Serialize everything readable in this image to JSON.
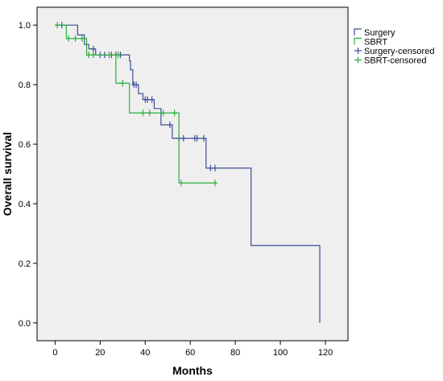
{
  "chart_data": {
    "type": "line",
    "subtype": "kaplan-meier step survival curve",
    "title": "",
    "xlabel": "Months",
    "ylabel": "Overall survival",
    "xlim": [
      -8,
      130
    ],
    "ylim": [
      -0.06,
      1.06
    ],
    "x_ticks": [
      0,
      20,
      40,
      60,
      80,
      100,
      120
    ],
    "y_ticks": [
      0.0,
      0.2,
      0.4,
      0.6,
      0.8,
      1.0
    ],
    "x_tick_labels": [
      "0",
      "20",
      "40",
      "60",
      "80",
      "100",
      "120"
    ],
    "y_tick_labels": [
      "0.0",
      "0.2",
      "0.4",
      "0.6",
      "0.8",
      "1.0"
    ],
    "grid": false,
    "background": "#efefef",
    "legend": {
      "placement": "right, outside plot",
      "entries": [
        {
          "label": "Surgery",
          "marker": "step",
          "color": "#3d4f9a"
        },
        {
          "label": "SBRT",
          "marker": "step",
          "color": "#29b03b"
        },
        {
          "label": "Surgery-censored",
          "marker": "cross",
          "color": "#3d4f9a"
        },
        {
          "label": "SBRT-censored",
          "marker": "cross",
          "color": "#29b03b"
        }
      ]
    },
    "series": [
      {
        "name": "Surgery",
        "color": "#3d4f9a",
        "steps": [
          [
            0,
            1.0
          ],
          [
            10,
            0.967
          ],
          [
            13,
            0.935
          ],
          [
            15,
            0.92
          ],
          [
            18,
            0.9
          ],
          [
            33,
            0.88
          ],
          [
            33.5,
            0.85
          ],
          [
            34.5,
            0.8
          ],
          [
            37,
            0.77
          ],
          [
            39,
            0.75
          ],
          [
            44,
            0.72
          ],
          [
            47,
            0.665
          ],
          [
            52,
            0.62
          ],
          [
            67,
            0.52
          ],
          [
            87,
            0.26
          ],
          [
            117.5,
            0.0
          ]
        ],
        "end_x": 117.5,
        "censored": [
          [
            3,
            1.0
          ],
          [
            17,
            0.92
          ],
          [
            20,
            0.9
          ],
          [
            22,
            0.9
          ],
          [
            25,
            0.9
          ],
          [
            27,
            0.9
          ],
          [
            29,
            0.9
          ],
          [
            35,
            0.8
          ],
          [
            36,
            0.8
          ],
          [
            40,
            0.75
          ],
          [
            41,
            0.75
          ],
          [
            43,
            0.75
          ],
          [
            51,
            0.665
          ],
          [
            55,
            0.62
          ],
          [
            57,
            0.62
          ],
          [
            62,
            0.62
          ],
          [
            63,
            0.62
          ],
          [
            66,
            0.62
          ],
          [
            69,
            0.52
          ],
          [
            71,
            0.52
          ]
        ]
      },
      {
        "name": "SBRT",
        "color": "#29b03b",
        "steps": [
          [
            0,
            1.0
          ],
          [
            5,
            0.955
          ],
          [
            14,
            0.9
          ],
          [
            27,
            0.805
          ],
          [
            33,
            0.705
          ],
          [
            55,
            0.47
          ]
        ],
        "end_x": 71,
        "censored": [
          [
            1,
            1.0
          ],
          [
            6,
            0.955
          ],
          [
            9,
            0.955
          ],
          [
            12,
            0.955
          ],
          [
            15,
            0.9
          ],
          [
            17,
            0.9
          ],
          [
            24,
            0.9
          ],
          [
            28,
            0.9
          ],
          [
            30,
            0.805
          ],
          [
            39,
            0.705
          ],
          [
            42,
            0.705
          ],
          [
            48,
            0.705
          ],
          [
            53,
            0.705
          ],
          [
            56,
            0.47
          ],
          [
            71,
            0.47
          ]
        ]
      }
    ]
  }
}
